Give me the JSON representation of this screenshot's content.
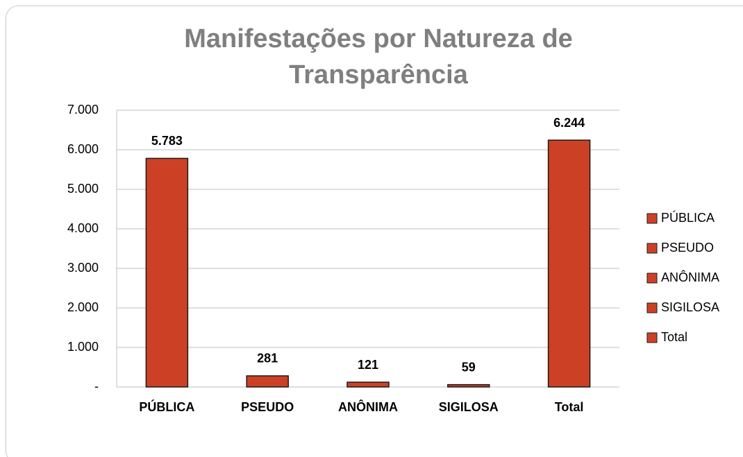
{
  "chart_data": {
    "type": "bar",
    "title": "Manifestações por Natureza de Transparência",
    "categories": [
      "PÚBLICA",
      "PSEUDO",
      "ANÔNIMA",
      "SIGILOSA",
      "Total"
    ],
    "values": [
      5783,
      281,
      121,
      59,
      6244
    ],
    "value_labels": [
      "5.783",
      "281",
      "121",
      "59",
      "6.244"
    ],
    "color": "#cc4125",
    "ylim": [
      0,
      7000
    ],
    "yticks": [
      {
        "value": 0,
        "label": "-"
      },
      {
        "value": 1000,
        "label": "1.000"
      },
      {
        "value": 2000,
        "label": "2.000"
      },
      {
        "value": 3000,
        "label": "3.000"
      },
      {
        "value": 4000,
        "label": "4.000"
      },
      {
        "value": 5000,
        "label": "5.000"
      },
      {
        "value": 6000,
        "label": "6.000"
      },
      {
        "value": 7000,
        "label": "7.000"
      }
    ],
    "grid": true,
    "legend": "right"
  }
}
